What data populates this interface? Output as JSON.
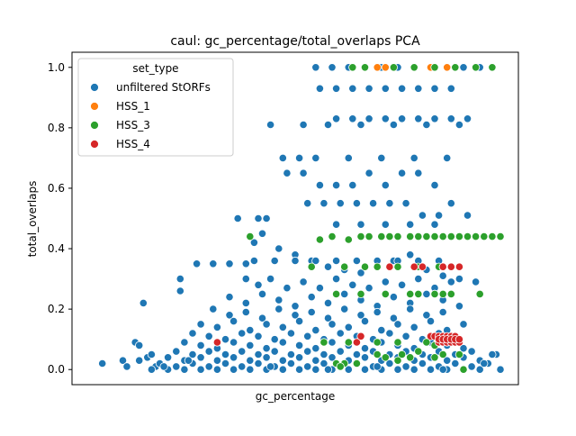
{
  "chart_data": {
    "type": "scatter",
    "title": "caul: gc_percentage/total_overlaps PCA",
    "xlabel": "gc_percentage",
    "ylabel": "total_overlaps",
    "ylim": [
      -0.05,
      1.05
    ],
    "yticks": [
      0.0,
      0.2,
      0.4,
      0.6,
      0.8,
      1.0
    ],
    "yticklabels": [
      "0.0",
      "0.2",
      "0.4",
      "0.6",
      "0.8",
      "1.0"
    ],
    "xlim": [
      0,
      100
    ],
    "xticks_shown": false,
    "grid": false,
    "legend": {
      "title": "set_type",
      "placement": "top-left",
      "entries": [
        "unfiltered StORFs",
        "HSS_1",
        "HSS_3",
        "HSS_4"
      ]
    },
    "colors": {
      "unfiltered StORFs": "#1f77b4",
      "HSS_1": "#ff7f0e",
      "HSS_3": "#2ca02c",
      "HSS_4": "#d62728"
    },
    "series": [
      {
        "name": "unfiltered StORFs",
        "x": [
          3,
          14,
          13,
          11,
          12,
          16,
          22,
          22,
          26,
          30,
          34,
          38,
          41,
          43,
          36,
          40,
          42,
          46,
          50,
          54,
          58,
          62,
          66,
          70,
          74,
          78,
          82,
          86,
          90,
          94,
          44,
          48,
          52,
          56,
          60,
          64,
          68,
          72,
          76,
          80,
          84,
          88,
          92,
          53,
          57,
          61,
          65,
          69,
          73,
          77,
          81,
          85,
          56,
          60,
          64,
          68,
          72,
          76,
          80,
          84,
          88,
          55,
          59,
          63,
          67,
          71,
          75,
          79,
          83,
          87,
          91,
          95,
          60,
          64,
          68,
          72,
          76,
          80,
          84,
          88,
          92,
          52,
          58,
          66,
          74,
          82,
          90,
          47,
          51,
          55,
          63,
          71,
          79,
          87,
          60,
          66,
          72,
          78,
          84,
          38,
          41,
          44,
          48,
          52,
          56,
          60,
          64,
          68,
          72,
          76,
          80,
          84,
          88,
          34,
          38,
          42,
          46,
          50,
          54,
          58,
          62,
          66,
          70,
          74,
          78,
          82,
          86,
          90,
          30,
          34,
          38,
          42,
          46,
          50,
          54,
          58,
          62,
          66,
          70,
          74,
          78,
          82,
          86,
          27,
          31,
          35,
          39,
          43,
          47,
          51,
          55,
          59,
          63,
          67,
          71,
          75,
          79,
          83,
          87,
          91,
          25,
          29,
          33,
          37,
          41,
          45,
          49,
          53,
          57,
          61,
          65,
          69,
          73,
          77,
          81,
          85,
          89,
          23,
          27,
          31,
          35,
          39,
          43,
          47,
          51,
          55,
          59,
          63,
          67,
          71,
          75,
          79,
          83,
          87,
          91,
          21,
          25,
          29,
          33,
          37,
          41,
          45,
          49,
          53,
          57,
          61,
          65,
          69,
          73,
          77,
          81,
          85,
          89,
          93,
          19,
          23,
          27,
          31,
          35,
          39,
          43,
          47,
          51,
          55,
          59,
          63,
          67,
          71,
          75,
          79,
          83,
          87,
          91,
          95,
          99,
          17,
          21,
          25,
          29,
          33,
          37,
          41,
          45,
          49,
          53,
          57,
          61,
          65,
          69,
          73,
          77,
          81,
          85,
          89,
          93,
          97,
          15,
          19,
          23,
          27,
          31,
          35,
          39,
          43,
          47,
          51,
          55,
          59,
          63,
          67,
          71,
          75,
          79,
          83,
          87,
          91,
          95,
          100,
          8,
          9,
          12,
          15,
          18,
          24,
          44,
          58,
          70,
          86,
          96,
          98,
          40,
          45,
          50,
          55,
          60,
          65,
          70,
          75,
          80,
          85
        ],
        "y": [
          0.02,
          0.04,
          0.22,
          0.09,
          0.08,
          0.01,
          0.26,
          0.3,
          0.35,
          0.35,
          0.35,
          0.35,
          0.5,
          0.5,
          0.5,
          0.42,
          0.45,
          0.4,
          0.38,
          0.36,
          0.34,
          0.33,
          0.32,
          0.34,
          0.36,
          0.38,
          0.33,
          0.31,
          0.3,
          0.29,
          0.81,
          0.65,
          0.65,
          0.61,
          0.61,
          0.61,
          0.65,
          0.61,
          0.65,
          0.65,
          0.61,
          0.55,
          0.51,
          0.55,
          0.55,
          0.55,
          0.55,
          0.55,
          0.55,
          0.55,
          0.51,
          0.51,
          0.93,
          0.93,
          0.93,
          0.93,
          0.93,
          0.93,
          0.93,
          0.93,
          0.93,
          1.0,
          1.0,
          1.0,
          1.0,
          1.0,
          1.0,
          1.0,
          1.0,
          1.0,
          1.0,
          1.0,
          0.83,
          0.83,
          0.83,
          0.83,
          0.83,
          0.83,
          0.83,
          0.83,
          0.83,
          0.81,
          0.81,
          0.81,
          0.81,
          0.81,
          0.81,
          0.7,
          0.7,
          0.7,
          0.7,
          0.7,
          0.7,
          0.7,
          0.48,
          0.48,
          0.48,
          0.48,
          0.48,
          0.3,
          0.28,
          0.3,
          0.27,
          0.29,
          0.27,
          0.3,
          0.28,
          0.27,
          0.29,
          0.28,
          0.3,
          0.27,
          0.29,
          0.24,
          0.22,
          0.25,
          0.23,
          0.21,
          0.24,
          0.22,
          0.25,
          0.23,
          0.21,
          0.24,
          0.22,
          0.25,
          0.23,
          0.21,
          0.2,
          0.18,
          0.19,
          0.17,
          0.2,
          0.18,
          0.19,
          0.17,
          0.2,
          0.18,
          0.19,
          0.17,
          0.2,
          0.18,
          0.19,
          0.15,
          0.14,
          0.16,
          0.13,
          0.15,
          0.14,
          0.16,
          0.13,
          0.15,
          0.14,
          0.16,
          0.13,
          0.15,
          0.14,
          0.16,
          0.13,
          0.15,
          0.12,
          0.11,
          0.1,
          0.12,
          0.11,
          0.1,
          0.12,
          0.11,
          0.1,
          0.12,
          0.11,
          0.1,
          0.12,
          0.11,
          0.1,
          0.12,
          0.11,
          0.09,
          0.08,
          0.07,
          0.09,
          0.08,
          0.07,
          0.09,
          0.08,
          0.07,
          0.09,
          0.08,
          0.07,
          0.09,
          0.08,
          0.07,
          0.09,
          0.08,
          0.07,
          0.06,
          0.05,
          0.06,
          0.05,
          0.06,
          0.05,
          0.06,
          0.05,
          0.06,
          0.05,
          0.06,
          0.05,
          0.06,
          0.05,
          0.06,
          0.05,
          0.06,
          0.05,
          0.06,
          0.04,
          0.03,
          0.04,
          0.03,
          0.04,
          0.03,
          0.04,
          0.03,
          0.04,
          0.03,
          0.04,
          0.03,
          0.04,
          0.03,
          0.04,
          0.03,
          0.04,
          0.03,
          0.04,
          0.03,
          0.05,
          0.02,
          0.01,
          0.02,
          0.01,
          0.02,
          0.01,
          0.02,
          0.01,
          0.02,
          0.01,
          0.02,
          0.01,
          0.02,
          0.01,
          0.02,
          0.01,
          0.02,
          0.01,
          0.02,
          0.01,
          0.02,
          0.0,
          0.0,
          0.0,
          0.0,
          0.0,
          0.0,
          0.0,
          0.0,
          0.0,
          0.0,
          0.0,
          0.0,
          0.0,
          0.0,
          0.0,
          0.0,
          0.0,
          0.0,
          0.0,
          0.0,
          0.0,
          0.0,
          0.03,
          0.01,
          0.03,
          0.05,
          0.01,
          0.03,
          0.01,
          0.0,
          0.01,
          0.0,
          0.02,
          0.05,
          0.36,
          0.36,
          0.36,
          0.36,
          0.36,
          0.36,
          0.36,
          0.36,
          0.36,
          0.36
        ]
      },
      {
        "name": "HSS_1",
        "x": [
          70,
          72,
          83,
          87
        ],
        "y": [
          1.0,
          1.0,
          1.0,
          1.0
        ]
      },
      {
        "name": "HSS_3",
        "x": [
          39,
          56,
          59,
          63,
          66,
          68,
          71,
          73,
          75,
          78,
          80,
          82,
          84,
          86,
          88,
          90,
          92,
          94,
          96,
          98,
          100,
          64,
          67,
          74,
          79,
          84,
          89,
          94,
          98,
          54,
          62,
          67,
          70,
          75,
          80,
          85,
          90,
          95,
          72,
          78,
          84,
          60,
          66,
          72,
          80,
          84,
          86,
          88,
          57,
          63,
          70,
          75,
          82,
          60,
          62,
          72,
          84,
          91,
          70,
          76,
          86,
          90,
          61,
          65,
          75,
          78,
          80,
          84,
          86
        ],
        "y": [
          0.44,
          0.43,
          0.44,
          0.43,
          0.44,
          0.44,
          0.44,
          0.44,
          0.44,
          0.44,
          0.44,
          0.44,
          0.44,
          0.44,
          0.44,
          0.44,
          0.44,
          0.44,
          0.44,
          0.44,
          0.44,
          1.0,
          1.0,
          1.0,
          1.0,
          1.0,
          1.0,
          1.0,
          1.0,
          0.34,
          0.34,
          0.34,
          0.34,
          0.34,
          0.34,
          0.34,
          0.34,
          0.25,
          0.25,
          0.25,
          0.25,
          0.25,
          0.25,
          0.25,
          0.25,
          0.25,
          0.25,
          0.25,
          0.09,
          0.09,
          0.09,
          0.09,
          0.09,
          0.02,
          0.02,
          0.04,
          0.04,
          0.0,
          0.05,
          0.05,
          0.05,
          0.05,
          0.01,
          0.02,
          0.03,
          0.04,
          0.06,
          0.08,
          0.1
        ]
      },
      {
        "name": "HSS_4",
        "x": [
          31,
          65,
          66,
          73,
          79,
          81,
          86,
          88,
          90,
          83,
          84,
          85,
          86,
          87,
          88,
          89,
          85,
          86,
          87,
          88,
          89,
          90,
          85,
          86,
          87,
          88,
          89,
          90
        ],
        "y": [
          0.09,
          0.09,
          0.11,
          0.34,
          0.34,
          0.34,
          0.34,
          0.34,
          0.34,
          0.11,
          0.11,
          0.11,
          0.11,
          0.11,
          0.11,
          0.11,
          0.09,
          0.09,
          0.09,
          0.09,
          0.09,
          0.09,
          0.1,
          0.1,
          0.1,
          0.1,
          0.1,
          0.1
        ]
      }
    ]
  }
}
